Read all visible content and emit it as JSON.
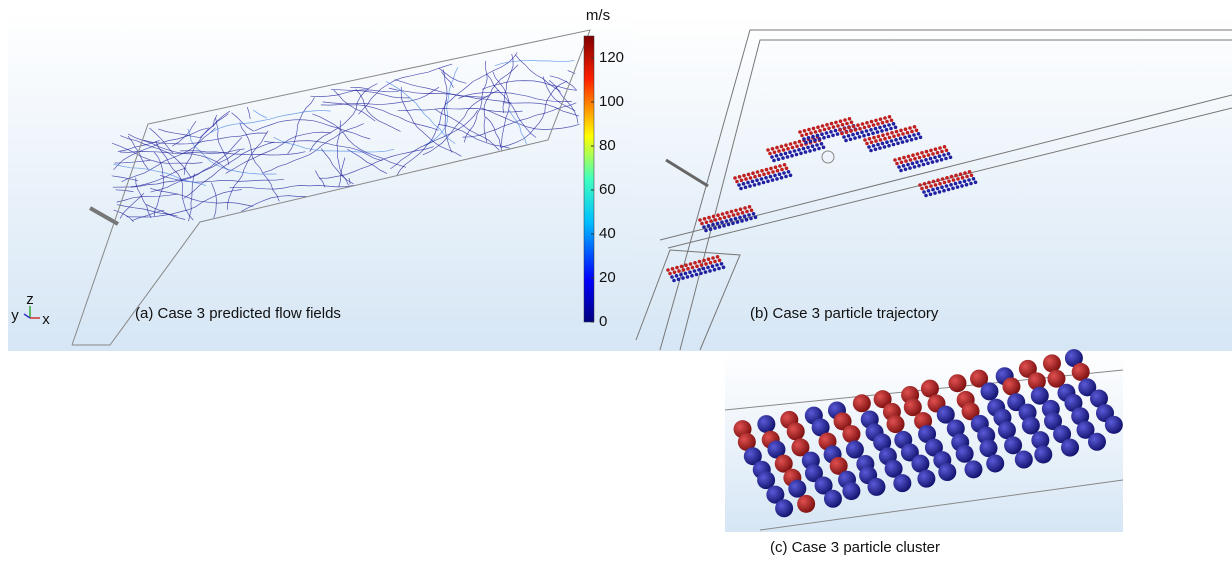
{
  "panels": [
    {
      "caption": "(a) Case 3 predicted flow fields"
    },
    {
      "caption": "(b) Case 3 particle trajectory"
    },
    {
      "caption": "(c) Case 3 particle cluster"
    }
  ],
  "axes_triad": [
    "y",
    "z",
    "x"
  ],
  "colorbar": {
    "unit": "m/s",
    "lim": [
      0,
      130
    ],
    "ticks": [
      0,
      20,
      40,
      60,
      80,
      100,
      120
    ]
  }
}
